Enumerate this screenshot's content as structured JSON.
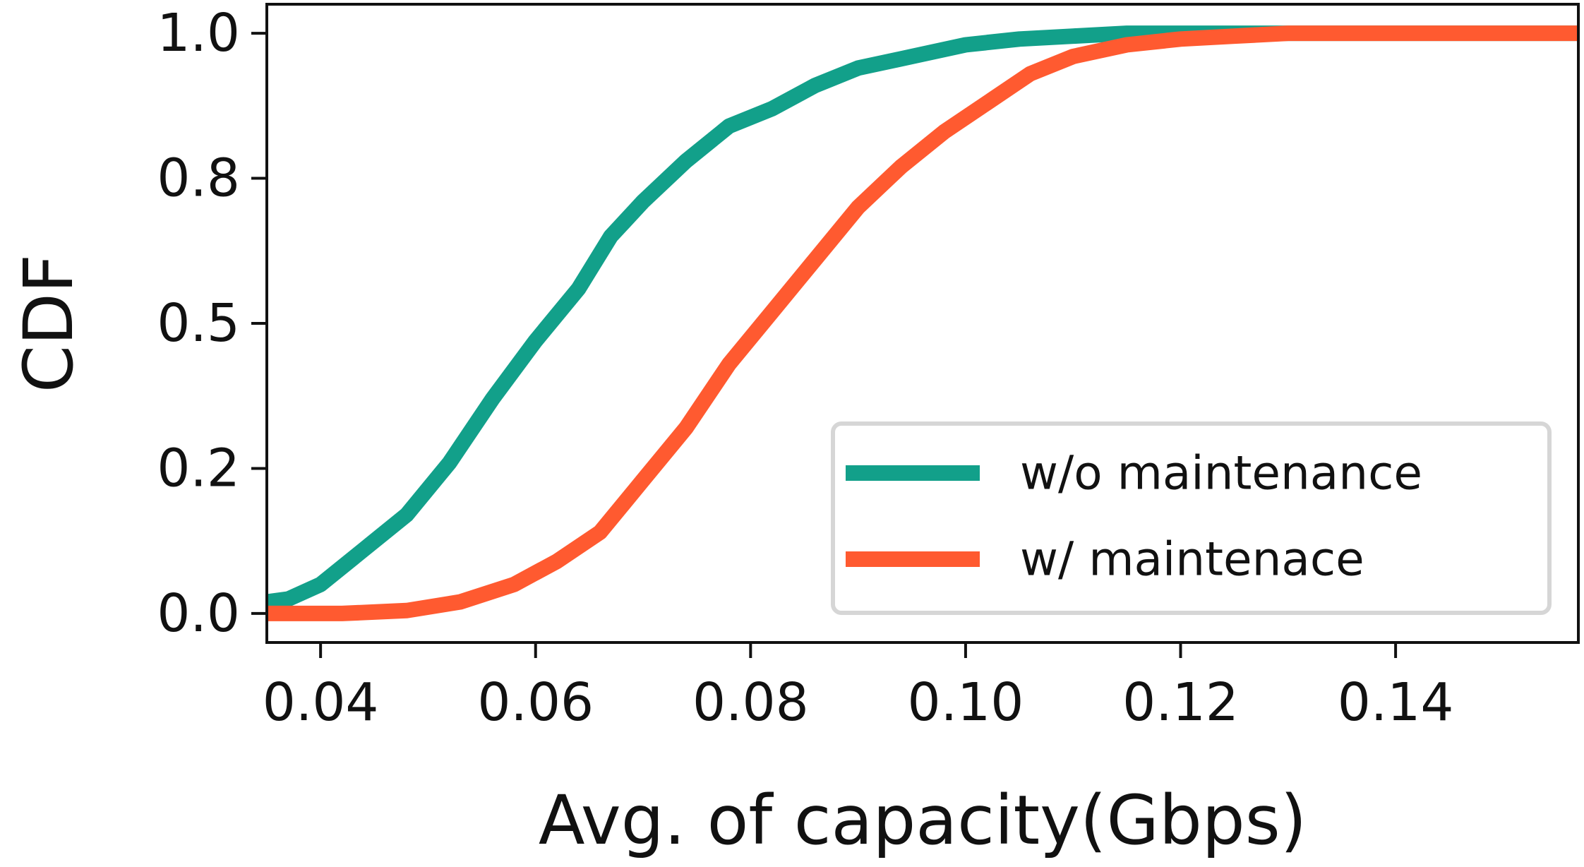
{
  "chart_data": {
    "type": "line",
    "title": "",
    "xlabel": "Avg. of capacity(Gbps)",
    "ylabel": "CDF",
    "xlim": [
      0.035,
      0.157
    ],
    "ylim": [
      -0.05,
      1.05
    ],
    "xticks": [
      0.04,
      0.06,
      0.08,
      0.1,
      0.12,
      0.14
    ],
    "xtick_labels": [
      "0.04",
      "0.06",
      "0.08",
      "0.10",
      "0.12",
      "0.14"
    ],
    "yticks": [
      0.0,
      0.25,
      0.5,
      0.75,
      1.0
    ],
    "ytick_labels": [
      "0.0",
      "0.2",
      "0.5",
      "0.8",
      "1.0"
    ],
    "grid": false,
    "legend_position": "lower-right",
    "series": [
      {
        "name": "w/o maintenance",
        "color": "#12a08a",
        "points": [
          [
            0.035,
            0.02
          ],
          [
            0.037,
            0.025
          ],
          [
            0.04,
            0.05
          ],
          [
            0.044,
            0.11
          ],
          [
            0.048,
            0.17
          ],
          [
            0.052,
            0.26
          ],
          [
            0.056,
            0.37
          ],
          [
            0.06,
            0.47
          ],
          [
            0.064,
            0.56
          ],
          [
            0.067,
            0.65
          ],
          [
            0.07,
            0.71
          ],
          [
            0.074,
            0.78
          ],
          [
            0.078,
            0.84
          ],
          [
            0.082,
            0.87
          ],
          [
            0.086,
            0.91
          ],
          [
            0.09,
            0.94
          ],
          [
            0.095,
            0.96
          ],
          [
            0.1,
            0.98
          ],
          [
            0.105,
            0.99
          ],
          [
            0.11,
            0.995
          ],
          [
            0.115,
            1.0
          ],
          [
            0.12,
            1.0
          ],
          [
            0.13,
            1.0
          ],
          [
            0.157,
            1.0
          ]
        ]
      },
      {
        "name": "w/ maintenace",
        "color": "#ff5a30",
        "points": [
          [
            0.035,
            0.0
          ],
          [
            0.042,
            0.0
          ],
          [
            0.048,
            0.005
          ],
          [
            0.053,
            0.02
          ],
          [
            0.058,
            0.05
          ],
          [
            0.062,
            0.09
          ],
          [
            0.066,
            0.14
          ],
          [
            0.07,
            0.23
          ],
          [
            0.074,
            0.32
          ],
          [
            0.078,
            0.43
          ],
          [
            0.082,
            0.52
          ],
          [
            0.086,
            0.61
          ],
          [
            0.09,
            0.7
          ],
          [
            0.094,
            0.77
          ],
          [
            0.098,
            0.83
          ],
          [
            0.102,
            0.88
          ],
          [
            0.106,
            0.93
          ],
          [
            0.11,
            0.96
          ],
          [
            0.115,
            0.98
          ],
          [
            0.12,
            0.99
          ],
          [
            0.125,
            0.995
          ],
          [
            0.13,
            1.0
          ],
          [
            0.157,
            1.0
          ]
        ]
      }
    ]
  }
}
